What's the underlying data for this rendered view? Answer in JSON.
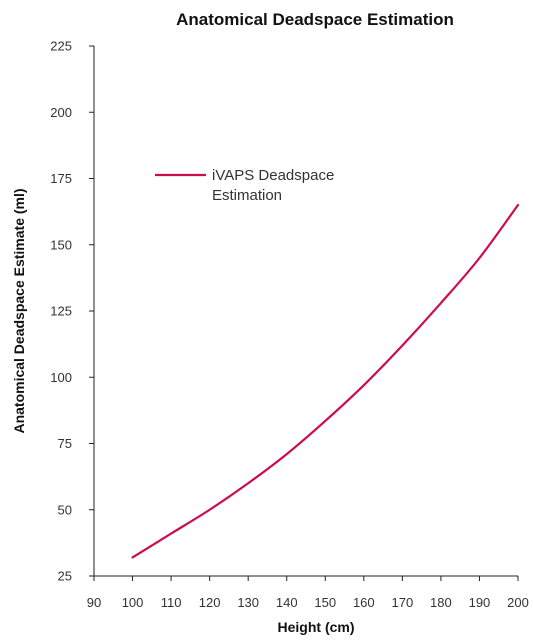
{
  "chart_data": {
    "type": "line",
    "title": "Anatomical Deadspace Estimation",
    "xlabel": "Height (cm)",
    "ylabel": "Anatomical Deadspace Estimate (ml)",
    "xlim": [
      90,
      200
    ],
    "ylim": [
      25,
      225
    ],
    "xticks": [
      "90",
      "100",
      "110",
      "120",
      "130",
      "140",
      "150",
      "160",
      "170",
      "180",
      "190",
      "200"
    ],
    "yticks": [
      "25",
      "50",
      "75",
      "100",
      "125",
      "150",
      "175",
      "200",
      "225"
    ],
    "grid": false,
    "legend_position": "upper-left",
    "series": [
      {
        "name": "iVAPS Deadspace Estimation",
        "legend_lines": [
          "iVAPS Deadspace",
          "Estimation"
        ],
        "color": "#cc0c4b",
        "x": [
          100,
          110,
          120,
          130,
          140,
          150,
          160,
          170,
          180,
          190,
          200
        ],
        "y": [
          32,
          41,
          50,
          60,
          71,
          83.5,
          97,
          112,
          128,
          145,
          165
        ]
      }
    ]
  }
}
